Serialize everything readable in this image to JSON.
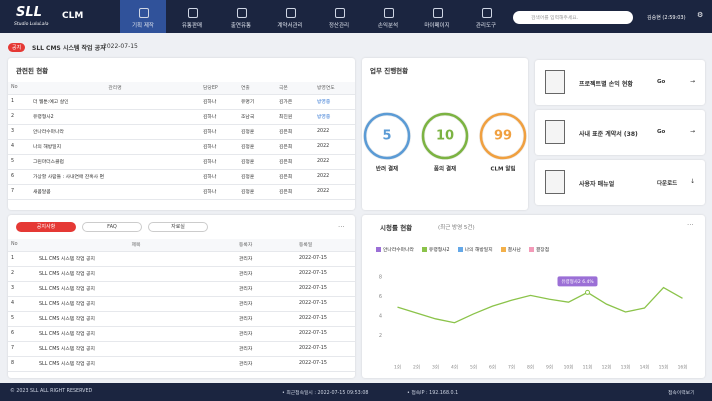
{
  "header": {
    "logo": "SLL",
    "logo_sub": "Studio LuluLala",
    "product": "CLM",
    "nav": [
      "기획 제작",
      "유통판매",
      "출연유통",
      "계약서관리",
      "정산관리",
      "손익분석",
      "마이페이지",
      "관리도구"
    ],
    "active": 0,
    "search_placeholder": "검색어를 입력해주세요.",
    "user": "김승현 (2:59:03)"
  },
  "notice": {
    "badge": "공지",
    "text": "SLL CMS 시스템 작업 공지",
    "date": "2022-07-15"
  },
  "projects": {
    "title": "관련된 현황",
    "columns": [
      "No",
      "관리명",
      "담당EP",
      "연출",
      "극본",
      "방영연도"
    ],
    "rows": [
      [
        1,
        "더 웹툰:예고 살인",
        "김하나",
        "유명기",
        "김가은",
        "방영중"
      ],
      [
        2,
        "유령형사2",
        "김하나",
        "조남국",
        "최진원",
        "방영중"
      ],
      [
        3,
        "안나라수마나라",
        "김하나",
        "김정훈",
        "김은희",
        "2022"
      ],
      [
        4,
        "나의 해방일지",
        "김하나",
        "김정훈",
        "김은희",
        "2022"
      ],
      [
        5,
        "그린마더스클럽",
        "김하나",
        "김정훈",
        "김은희",
        "2022"
      ],
      [
        6,
        "가상할 사람들 : 사내연애 잔혹사 편",
        "김하나",
        "김정훈",
        "김은희",
        "2022"
      ],
      [
        7,
        "새콤달콤",
        "김하나",
        "김정훈",
        "김은희",
        "2022"
      ]
    ]
  },
  "status": {
    "title": "업무 진행현황",
    "items": [
      {
        "value": 5,
        "label": "반려 결재",
        "color": "#5b9bd5"
      },
      {
        "value": 10,
        "label": "품의 결재",
        "color": "#7cb342"
      },
      {
        "value": 99,
        "label": "CLM 알림",
        "color": "#f0a040"
      }
    ]
  },
  "links": [
    {
      "label": "프로젝트별 손익 현황",
      "action": "Go",
      "arrow": "→"
    },
    {
      "label": "사내 표준 계약서 (38)",
      "action": "Go",
      "arrow": "→"
    },
    {
      "label": "사용자 매뉴얼",
      "action": "다운로드",
      "arrow": "↓"
    }
  ],
  "board": {
    "tabs": [
      "공지사항",
      "FAQ",
      "자료실"
    ],
    "active": 0,
    "more": "···",
    "columns": [
      "No",
      "제목",
      "등록자",
      "등록일"
    ],
    "rows": [
      [
        1,
        "SLL CMS 시스템 작업 공지",
        "관리자",
        "2022-07-15"
      ],
      [
        2,
        "SLL CMS 시스템 작업 공지",
        "관리자",
        "2022-07-15"
      ],
      [
        3,
        "SLL CMS 시스템 작업 공지",
        "관리자",
        "2022-07-15"
      ],
      [
        4,
        "SLL CMS 시스템 작업 공지",
        "관리자",
        "2022-07-15"
      ],
      [
        5,
        "SLL CMS 시스템 작업 공지",
        "관리자",
        "2022-07-15"
      ],
      [
        6,
        "SLL CMS 시스템 작업 공지",
        "관리자",
        "2022-07-15"
      ],
      [
        7,
        "SLL CMS 시스템 작업 공지",
        "관리자",
        "2022-07-15"
      ],
      [
        8,
        "SLL CMS 시스템 작업 공지",
        "관리자",
        "2022-07-15"
      ]
    ]
  },
  "chart_data": {
    "type": "line",
    "title": "시청률 현황",
    "subtitle": "(최근 방영 5건)",
    "more": "···",
    "categories": [
      "1회",
      "2회",
      "3회",
      "4회",
      "5회",
      "6회",
      "7회",
      "8회",
      "9회",
      "10회",
      "11회",
      "12회",
      "13회",
      "14회",
      "15회",
      "16회"
    ],
    "series": [
      {
        "name": "안나라수마나라",
        "color": "#9b6fd6",
        "values": [
          null,
          null,
          null,
          null,
          null,
          null,
          null,
          null,
          null,
          null,
          null,
          null,
          null,
          null,
          null,
          null
        ]
      },
      {
        "name": "유령형사2",
        "color": "#8bc34a",
        "values": [
          4.9,
          4.3,
          3.7,
          3.3,
          4.2,
          5.0,
          5.6,
          6.1,
          5.7,
          5.4,
          6.4,
          5.2,
          4.4,
          4.8,
          6.9,
          5.8
        ]
      },
      {
        "name": "나의 해방일지",
        "color": "#64a8e8",
        "values": [
          null,
          null,
          null,
          null,
          null,
          null,
          null,
          null,
          null,
          null,
          null,
          null,
          null,
          null,
          null,
          null
        ]
      },
      {
        "name": "결사남",
        "color": "#f3b04a",
        "values": [
          null,
          null,
          null,
          null,
          null,
          null,
          null,
          null,
          null,
          null,
          null,
          null,
          null,
          null,
          null,
          null
        ]
      },
      {
        "name": "결장점",
        "color": "#f39ab8",
        "values": [
          null,
          null,
          null,
          null,
          null,
          null,
          null,
          null,
          null,
          null,
          null,
          null,
          null,
          null,
          null,
          null
        ]
      }
    ],
    "annotation": {
      "index": 10,
      "series": 1,
      "text": "유령형사2 6.4%"
    },
    "ylim": [
      0,
      9
    ],
    "yticks": [
      2,
      4,
      6,
      8
    ],
    "grid": false
  },
  "footer": {
    "copyright": "© 2023 SLL ALL RIGHT RESERVED",
    "last_login": "• 최근접속일시 : 2022-07-15 09:53:08",
    "ip": "• 접속IP : 192.168.0.1",
    "history": "접속이력보기"
  }
}
